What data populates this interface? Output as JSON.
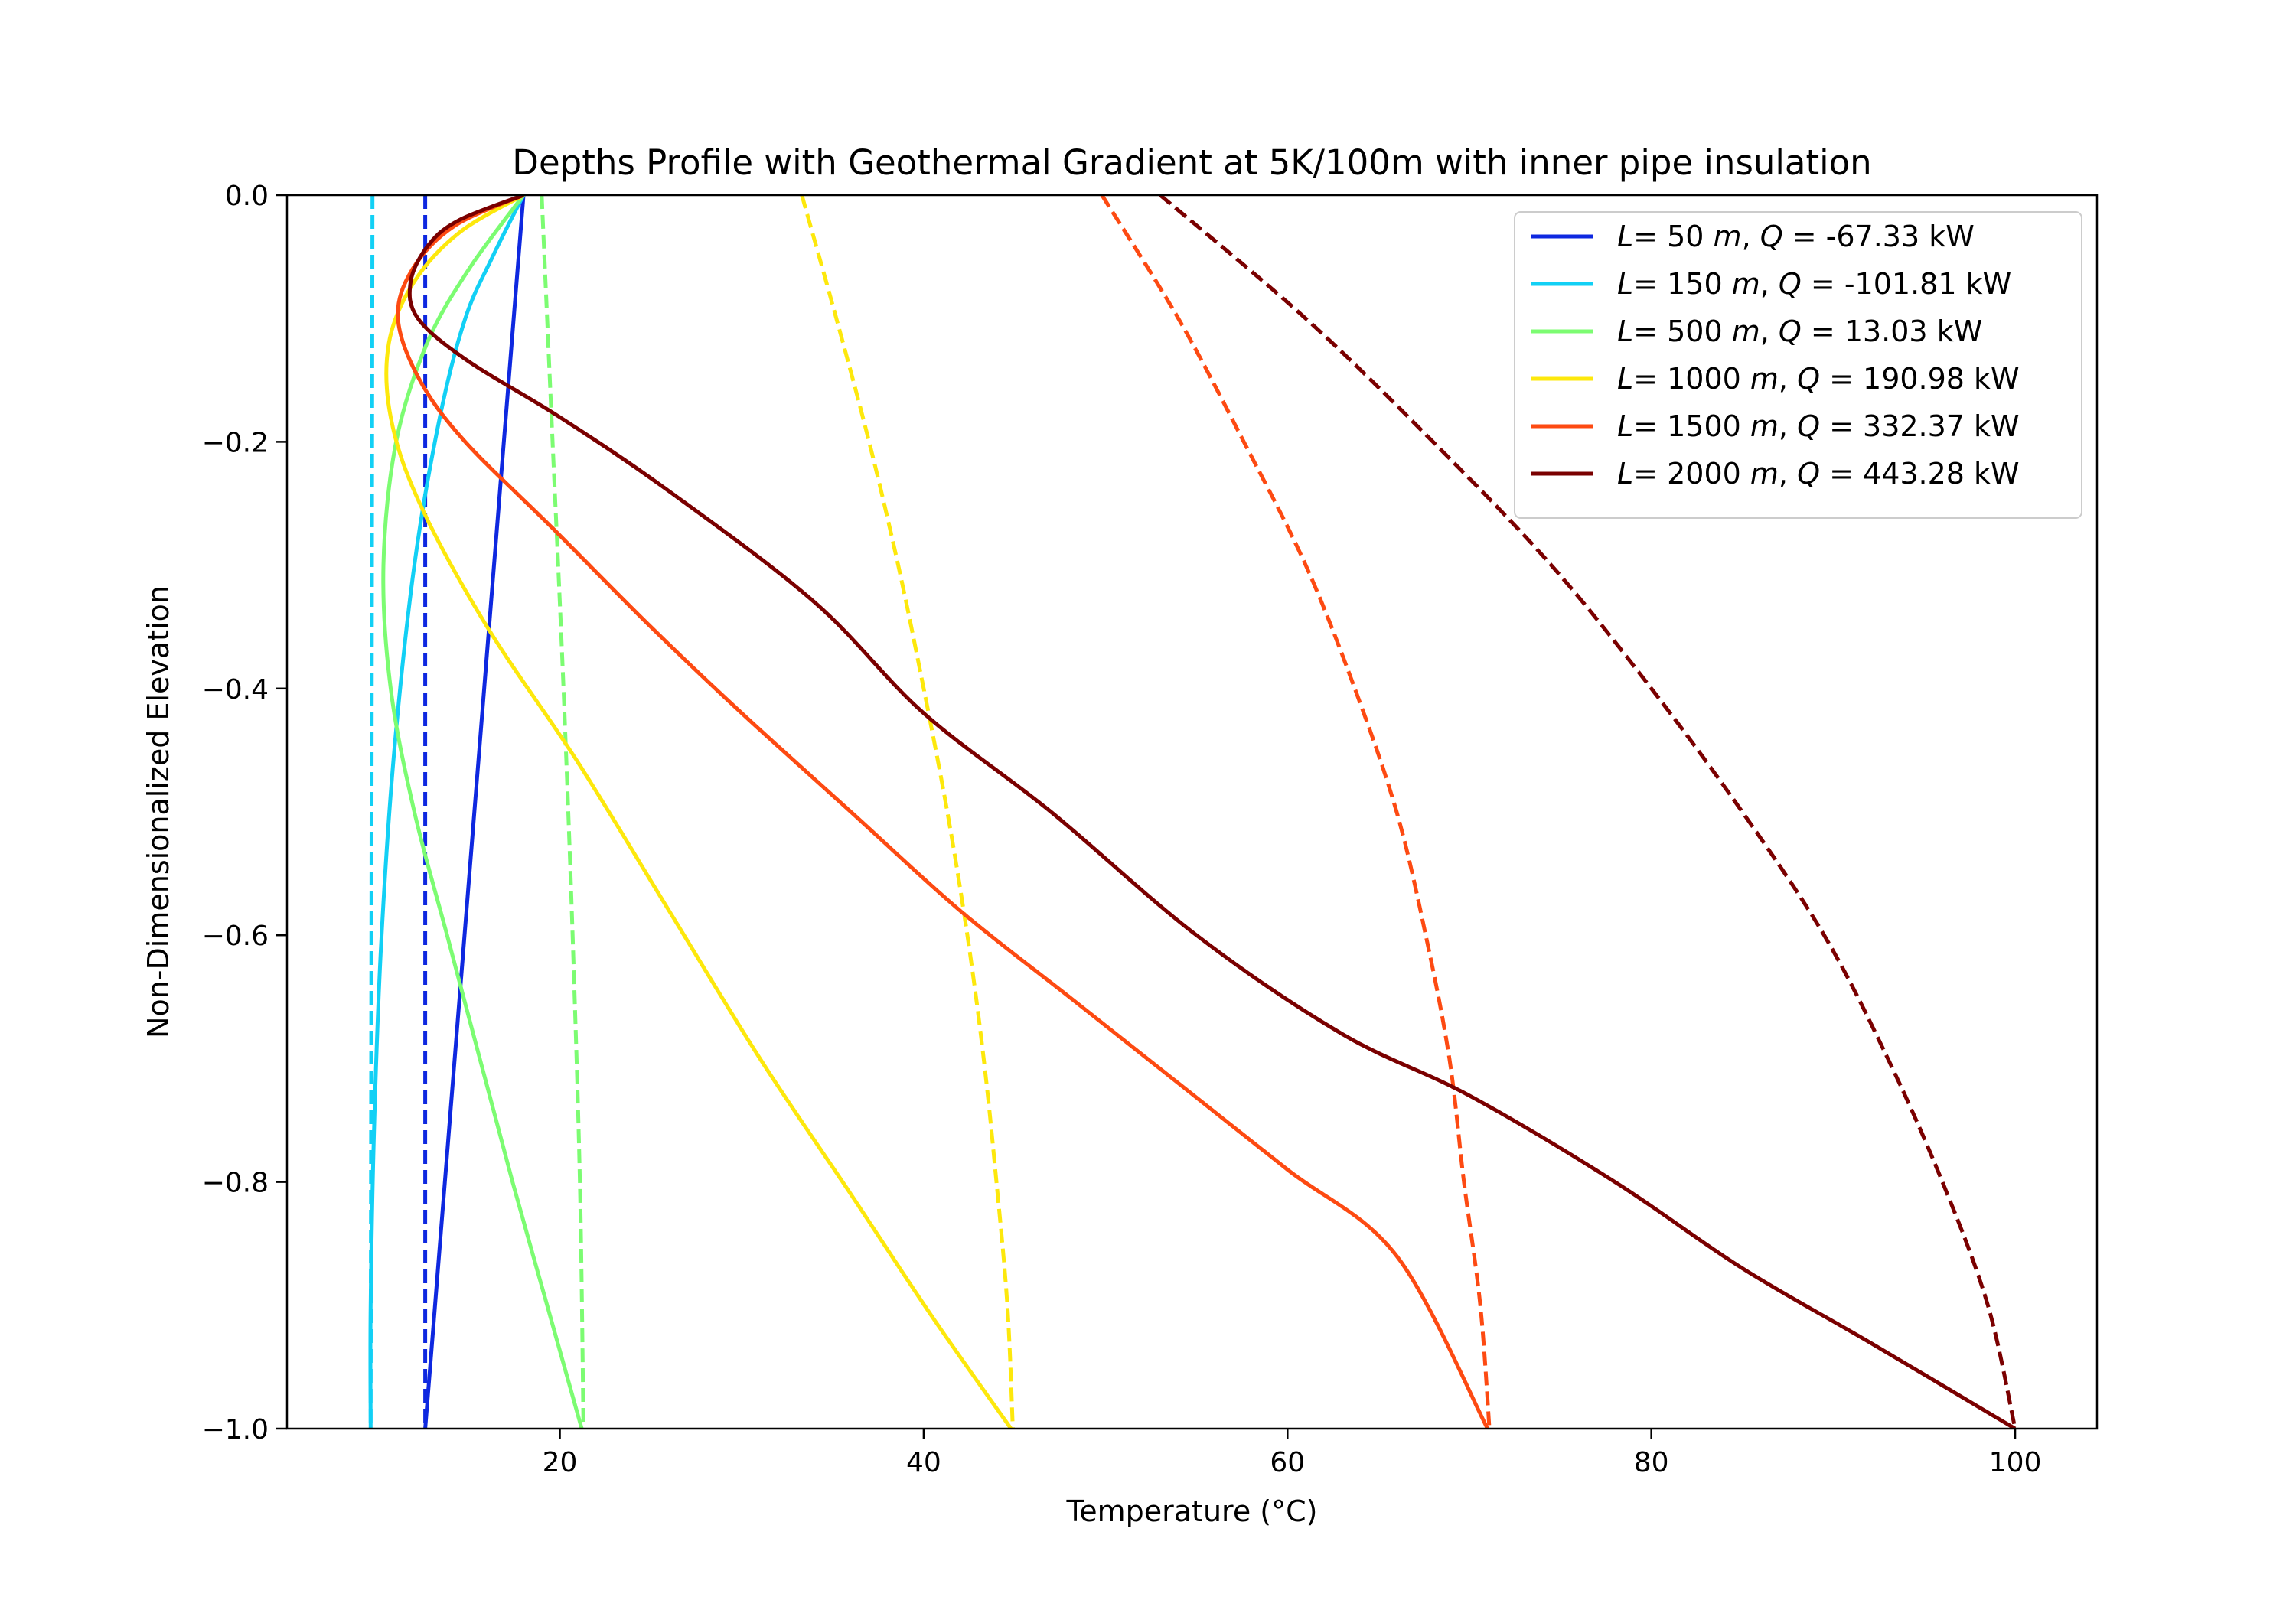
{
  "chart_data": {
    "type": "line",
    "title": "Depths Profile with Geothermal Gradient at 5K/100m with inner pipe insulation",
    "xlabel": "Temperature (°C)",
    "ylabel": "Non-Dimensionalized Elevation",
    "xlim": [
      5,
      104.5
    ],
    "ylim": [
      -1.0,
      0.0
    ],
    "xticks": [
      20,
      40,
      60,
      80,
      100
    ],
    "xtick_labels": [
      "20",
      "40",
      "60",
      "80",
      "100"
    ],
    "yticks": [
      0.0,
      -0.2,
      -0.4,
      -0.6,
      -0.8,
      -1.0
    ],
    "ytick_labels": [
      "0.0",
      "−0.2",
      "−0.4",
      "−0.6",
      "−0.8",
      "−1.0"
    ],
    "grid": false,
    "legend_position": "top-right",
    "series": [
      {
        "name": "L= 50 m, Q = -67.33 kW",
        "legend": {
          "L": "50",
          "Q": "-67.33"
        },
        "color": "#0e28e0",
        "solid": [
          [
            18.0,
            0.0
          ],
          [
            12.6,
            -1.0
          ]
        ],
        "dashed": [
          [
            12.6,
            0.0
          ],
          [
            12.6,
            -1.0
          ]
        ]
      },
      {
        "name": "L= 150 m, Q = -101.81 kW",
        "legend": {
          "L": "150",
          "Q": "-101.81"
        },
        "color": "#12d0f5",
        "solid": [
          [
            18.0,
            0.0
          ],
          [
            16.3,
            -0.05
          ],
          [
            14.8,
            -0.1
          ],
          [
            13.4,
            -0.18
          ],
          [
            12.0,
            -0.3
          ],
          [
            10.9,
            -0.45
          ],
          [
            10.2,
            -0.6
          ],
          [
            9.8,
            -0.75
          ],
          [
            9.6,
            -0.9
          ],
          [
            9.6,
            -1.0
          ]
        ],
        "dashed": [
          [
            9.7,
            0.0
          ],
          [
            9.6,
            -1.0
          ]
        ]
      },
      {
        "name": "L= 500 m, Q = 13.03 kW",
        "legend": {
          "L": "500",
          "Q": "13.03"
        },
        "color": "#7cfc72",
        "solid": [
          [
            18.0,
            0.0
          ],
          [
            15.0,
            -0.06
          ],
          [
            12.7,
            -0.12
          ],
          [
            11.0,
            -0.2
          ],
          [
            10.3,
            -0.3
          ],
          [
            10.7,
            -0.4
          ],
          [
            12.0,
            -0.5
          ],
          [
            13.8,
            -0.6
          ],
          [
            15.6,
            -0.7
          ],
          [
            17.4,
            -0.8
          ],
          [
            19.3,
            -0.9
          ],
          [
            21.2,
            -1.0
          ]
        ],
        "dashed": [
          [
            19.0,
            0.0
          ],
          [
            19.6,
            -0.2
          ],
          [
            20.2,
            -0.4
          ],
          [
            20.7,
            -0.6
          ],
          [
            21.1,
            -0.8
          ],
          [
            21.3,
            -1.0
          ]
        ]
      },
      {
        "name": "L= 1000 m, Q = 190.98 kW",
        "legend": {
          "L": "1000",
          "Q": "190.98"
        },
        "color": "#fde80c",
        "solid": [
          [
            18.0,
            0.0
          ],
          [
            14.5,
            -0.03
          ],
          [
            12.0,
            -0.07
          ],
          [
            10.6,
            -0.12
          ],
          [
            10.7,
            -0.18
          ],
          [
            12.3,
            -0.25
          ],
          [
            16.0,
            -0.35
          ],
          [
            21.0,
            -0.46
          ],
          [
            26.0,
            -0.58
          ],
          [
            31.0,
            -0.7
          ],
          [
            36.0,
            -0.81
          ],
          [
            40.5,
            -0.91
          ],
          [
            44.8,
            -1.0
          ]
        ],
        "dashed": [
          [
            33.3,
            0.0
          ],
          [
            35.2,
            -0.1
          ],
          [
            37.0,
            -0.2
          ],
          [
            38.6,
            -0.3
          ],
          [
            40.0,
            -0.4
          ],
          [
            41.3,
            -0.5
          ],
          [
            42.4,
            -0.6
          ],
          [
            43.3,
            -0.7
          ],
          [
            44.0,
            -0.8
          ],
          [
            44.6,
            -0.9
          ],
          [
            44.9,
            -1.0
          ]
        ]
      },
      {
        "name": "L= 1500 m, Q = 332.37 kW",
        "legend": {
          "L": "1500",
          "Q": "332.37"
        },
        "color": "#fd4a12",
        "solid": [
          [
            18.0,
            0.0
          ],
          [
            14.2,
            -0.025
          ],
          [
            11.9,
            -0.06
          ],
          [
            11.1,
            -0.1
          ],
          [
            12.3,
            -0.15
          ],
          [
            14.8,
            -0.2
          ],
          [
            19.6,
            -0.27
          ],
          [
            25.0,
            -0.35
          ],
          [
            30.0,
            -0.42
          ],
          [
            36.0,
            -0.5
          ],
          [
            42.0,
            -0.58
          ],
          [
            48.0,
            -0.65
          ],
          [
            54.0,
            -0.72
          ],
          [
            60.0,
            -0.79
          ],
          [
            66.0,
            -0.86
          ],
          [
            71.0,
            -1.0
          ]
        ],
        "dashed": [
          [
            49.8,
            0.0
          ],
          [
            54.0,
            -0.1
          ],
          [
            57.6,
            -0.2
          ],
          [
            61.0,
            -0.3
          ],
          [
            63.7,
            -0.4
          ],
          [
            66.0,
            -0.5
          ],
          [
            67.6,
            -0.6
          ],
          [
            68.9,
            -0.7
          ],
          [
            69.7,
            -0.8
          ],
          [
            70.6,
            -0.9
          ],
          [
            71.1,
            -1.0
          ]
        ]
      },
      {
        "name": "L= 2000 m, Q = 443.28 kW",
        "legend": {
          "L": "2000",
          "Q": "443.28"
        },
        "color": "#7a0000",
        "solid": [
          [
            18.0,
            0.0
          ],
          [
            14.5,
            -0.02
          ],
          [
            12.8,
            -0.04
          ],
          [
            11.8,
            -0.07
          ],
          [
            12.2,
            -0.1
          ],
          [
            15.0,
            -0.135
          ],
          [
            20.0,
            -0.18
          ],
          [
            26.0,
            -0.24
          ],
          [
            34.0,
            -0.33
          ],
          [
            40.0,
            -0.42
          ],
          [
            47.0,
            -0.5
          ],
          [
            55.0,
            -0.6
          ],
          [
            63.0,
            -0.68
          ],
          [
            70.0,
            -0.73
          ],
          [
            78.0,
            -0.8
          ],
          [
            85.0,
            -0.87
          ],
          [
            92.0,
            -0.93
          ],
          [
            100.0,
            -1.0
          ]
        ],
        "dashed": [
          [
            53.0,
            0.0
          ],
          [
            61.0,
            -0.1
          ],
          [
            68.0,
            -0.2
          ],
          [
            74.5,
            -0.3
          ],
          [
            80.0,
            -0.4
          ],
          [
            85.0,
            -0.5
          ],
          [
            89.5,
            -0.6
          ],
          [
            93.0,
            -0.7
          ],
          [
            96.0,
            -0.8
          ],
          [
            98.5,
            -0.9
          ],
          [
            100.0,
            -1.0
          ]
        ]
      }
    ]
  }
}
